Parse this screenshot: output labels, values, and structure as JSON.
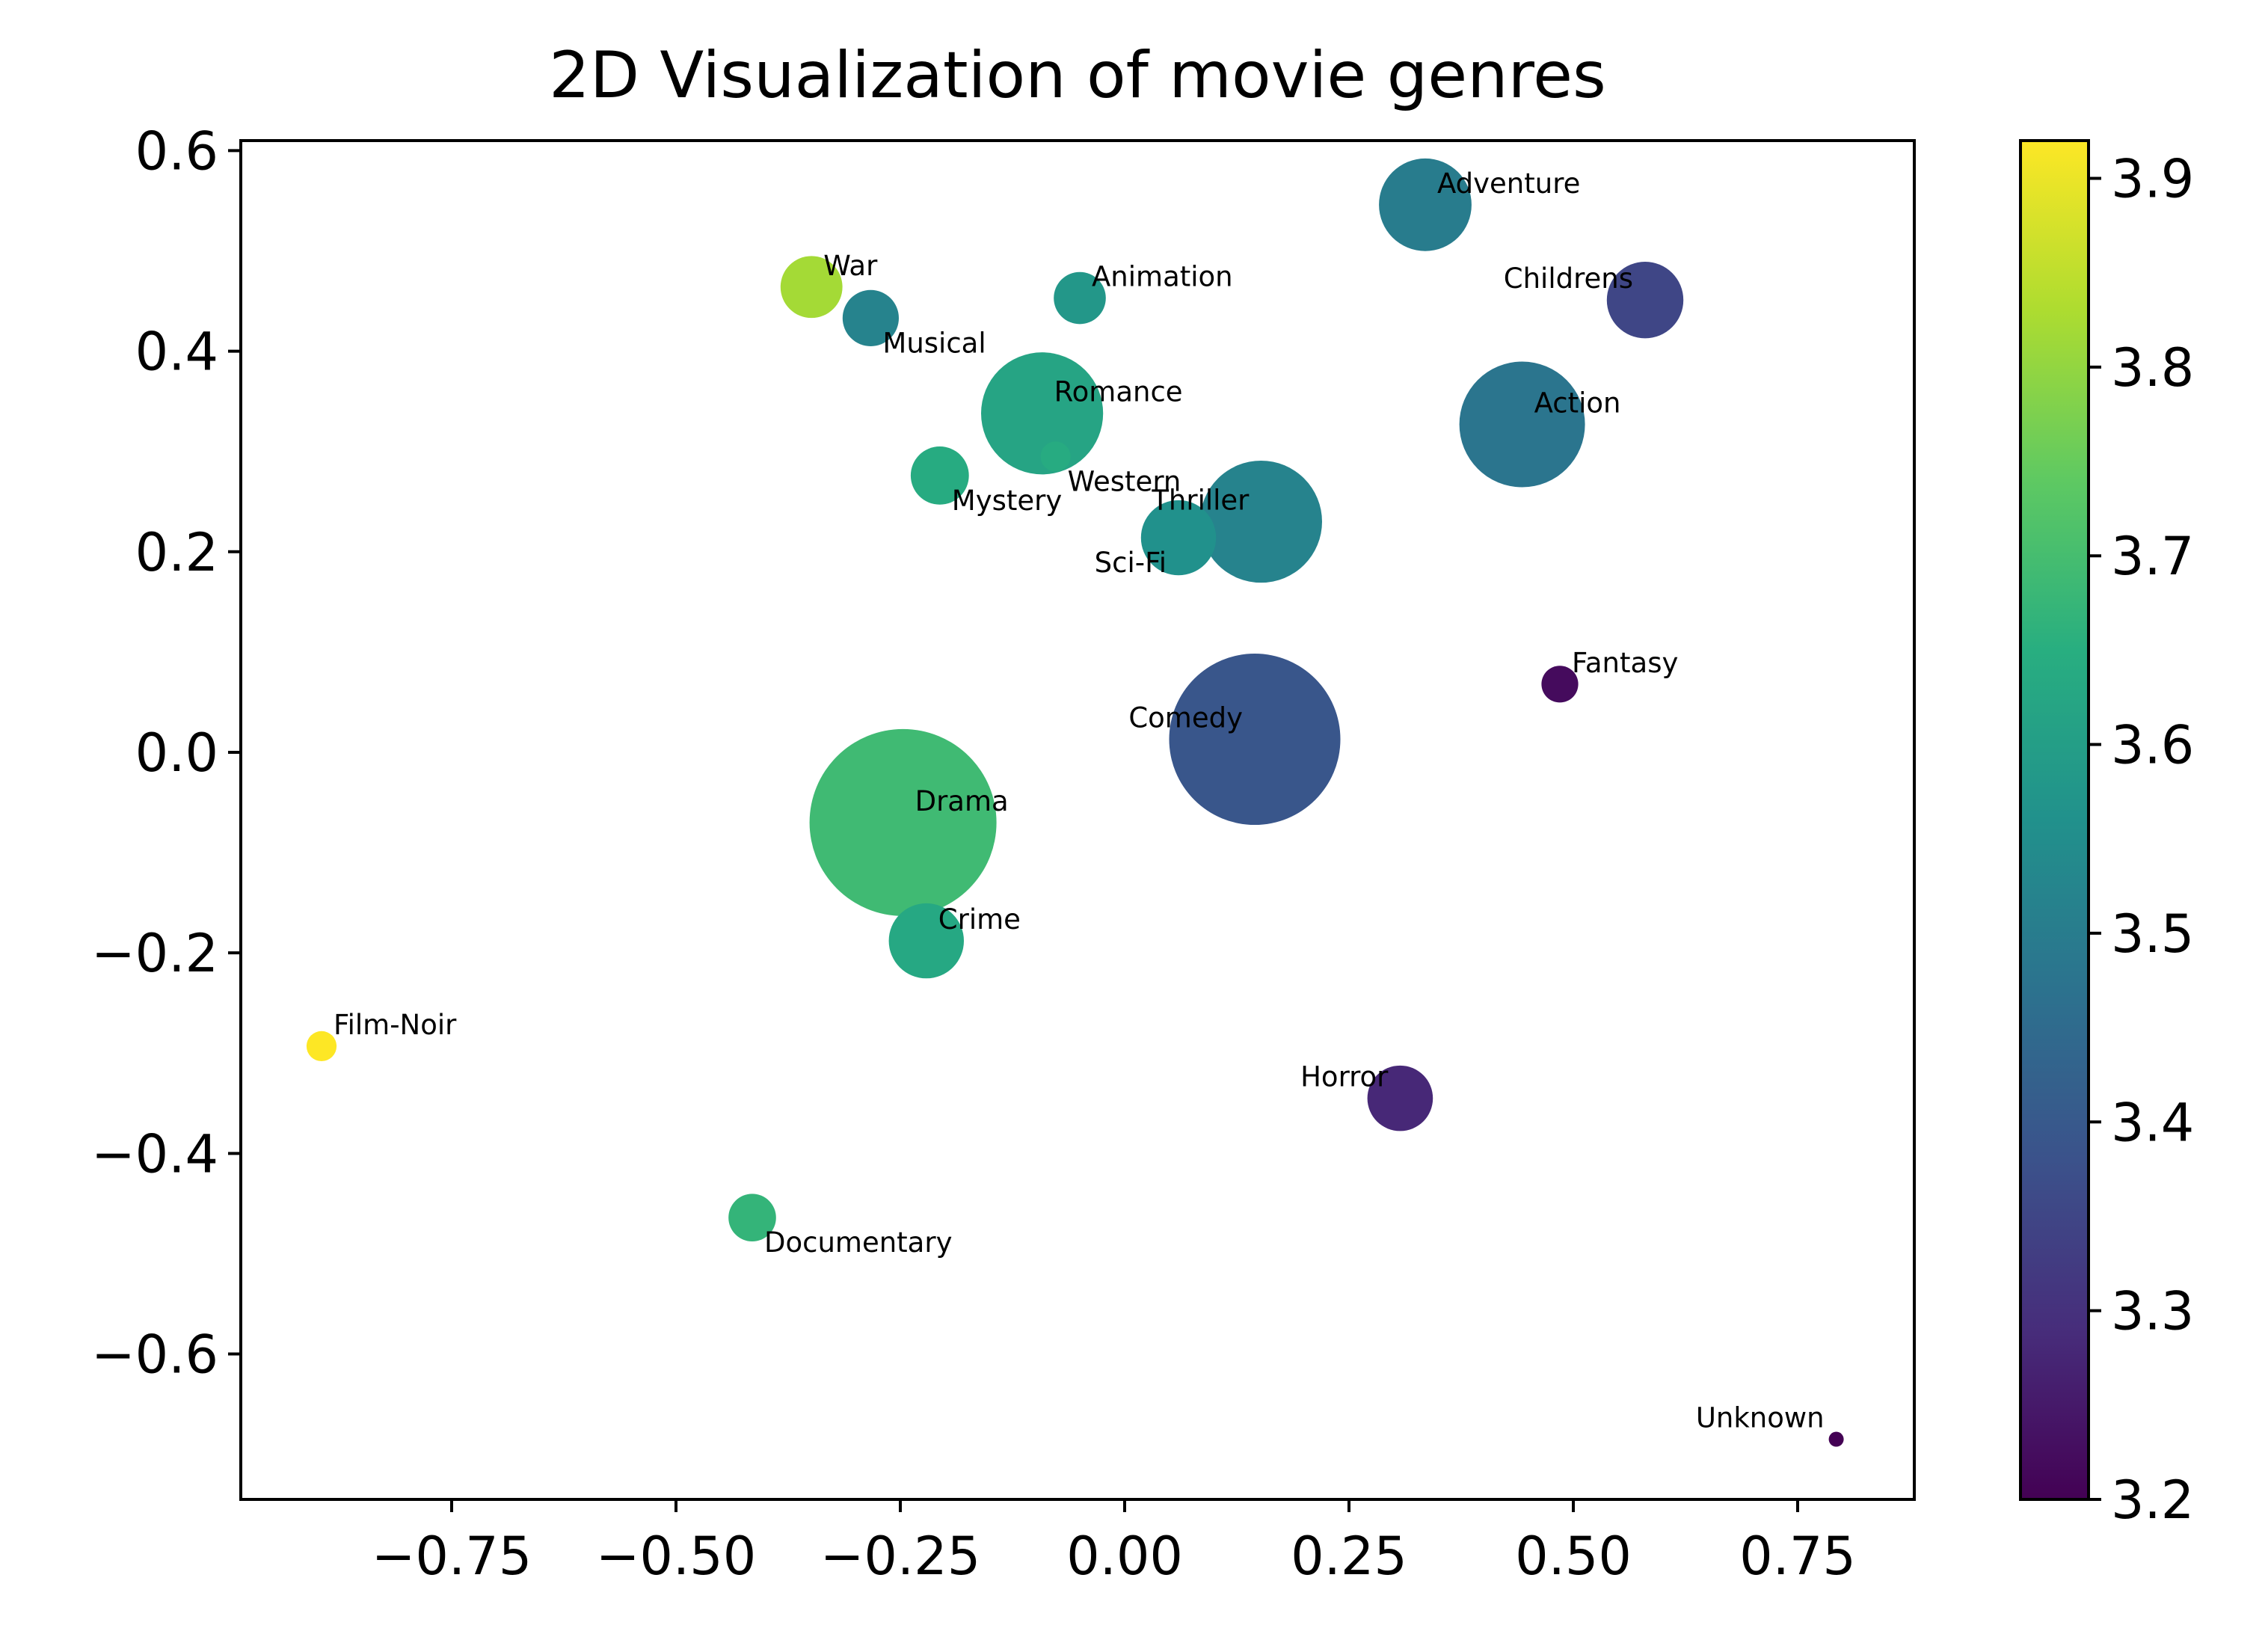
{
  "chart_data": {
    "type": "scatter",
    "title": "2D Visualization of movie genres",
    "xlabel": "",
    "ylabel": "",
    "xlim": [
      -0.985,
      0.88
    ],
    "ylim": [
      -0.745,
      0.61
    ],
    "x_ticks": [
      {
        "value": -0.75,
        "label": "−0.75"
      },
      {
        "value": -0.5,
        "label": "−0.50"
      },
      {
        "value": -0.25,
        "label": "−0.25"
      },
      {
        "value": 0.0,
        "label": "0.00"
      },
      {
        "value": 0.25,
        "label": "0.25"
      },
      {
        "value": 0.5,
        "label": "0.50"
      },
      {
        "value": 0.75,
        "label": "0.75"
      }
    ],
    "y_ticks": [
      {
        "value": 0.6,
        "label": "0.6"
      },
      {
        "value": 0.4,
        "label": "0.4"
      },
      {
        "value": 0.2,
        "label": "0.2"
      },
      {
        "value": 0.0,
        "label": "0.0"
      },
      {
        "value": -0.2,
        "label": "−0.2"
      },
      {
        "value": -0.4,
        "label": "−0.4"
      },
      {
        "value": -0.6,
        "label": "−0.6"
      }
    ],
    "colorbar": {
      "colormap": "viridis",
      "range": [
        3.2,
        3.92
      ],
      "ticks": [
        {
          "value": 3.2,
          "label": "3.2"
        },
        {
          "value": 3.3,
          "label": "3.3"
        },
        {
          "value": 3.4,
          "label": "3.4"
        },
        {
          "value": 3.5,
          "label": "3.5"
        },
        {
          "value": 3.6,
          "label": "3.6"
        },
        {
          "value": 3.7,
          "label": "3.7"
        },
        {
          "value": 3.8,
          "label": "3.8"
        },
        {
          "value": 3.9,
          "label": "3.9"
        }
      ]
    },
    "grid": false,
    "points": [
      {
        "label": "Adventure",
        "x": 0.335,
        "y": 0.546,
        "size": 0.38,
        "rating": 3.5,
        "label_side": "right-above"
      },
      {
        "label": "Childrens",
        "x": 0.58,
        "y": 0.451,
        "size": 0.26,
        "rating": 3.35,
        "label_side": "left-above"
      },
      {
        "label": "Action",
        "x": 0.443,
        "y": 0.327,
        "size": 0.7,
        "rating": 3.48,
        "label_side": "right-above"
      },
      {
        "label": "Fantasy",
        "x": 0.485,
        "y": 0.068,
        "size": 0.06,
        "rating": 3.22,
        "label_side": "right-above"
      },
      {
        "label": "Comedy",
        "x": 0.145,
        "y": 0.013,
        "size": 1.3,
        "rating": 3.39,
        "label_side": "left-above"
      },
      {
        "label": "Thriller",
        "x": 0.152,
        "y": 0.23,
        "size": 0.66,
        "rating": 3.52,
        "label_side": "left-above"
      },
      {
        "label": "Sci-Fi",
        "x": 0.06,
        "y": 0.214,
        "size": 0.25,
        "rating": 3.56,
        "label_side": "left-below"
      },
      {
        "label": "Western",
        "x": -0.077,
        "y": 0.295,
        "size": 0.04,
        "rating": 3.64,
        "label_side": "right-below"
      },
      {
        "label": "Romance",
        "x": -0.092,
        "y": 0.338,
        "size": 0.66,
        "rating": 3.62,
        "label_side": "right-above"
      },
      {
        "label": "Animation",
        "x": -0.05,
        "y": 0.453,
        "size": 0.12,
        "rating": 3.58,
        "label_side": "right-above"
      },
      {
        "label": "War",
        "x": -0.349,
        "y": 0.464,
        "size": 0.17,
        "rating": 3.82,
        "label_side": "right-above"
      },
      {
        "label": "Musical",
        "x": -0.283,
        "y": 0.433,
        "size": 0.14,
        "rating": 3.52,
        "label_side": "right-below"
      },
      {
        "label": "Mystery",
        "x": -0.206,
        "y": 0.276,
        "size": 0.15,
        "rating": 3.64,
        "label_side": "right-below"
      },
      {
        "label": "Drama",
        "x": -0.247,
        "y": -0.07,
        "size": 1.55,
        "rating": 3.69,
        "label_side": "right-above"
      },
      {
        "label": "Crime",
        "x": -0.221,
        "y": -0.188,
        "size": 0.25,
        "rating": 3.63,
        "label_side": "right-above"
      },
      {
        "label": "Film-Noir",
        "x": -0.895,
        "y": -0.293,
        "size": 0.04,
        "rating": 3.92,
        "label_side": "right-above"
      },
      {
        "label": "Documentary",
        "x": -0.415,
        "y": -0.464,
        "size": 0.1,
        "rating": 3.67,
        "label_side": "right-below"
      },
      {
        "label": "Horror",
        "x": 0.307,
        "y": -0.345,
        "size": 0.19,
        "rating": 3.28,
        "label_side": "left-above"
      },
      {
        "label": "Unknown",
        "x": 0.793,
        "y": -0.685,
        "size": 0.01,
        "rating": 3.2,
        "label_side": "left-above"
      }
    ]
  }
}
